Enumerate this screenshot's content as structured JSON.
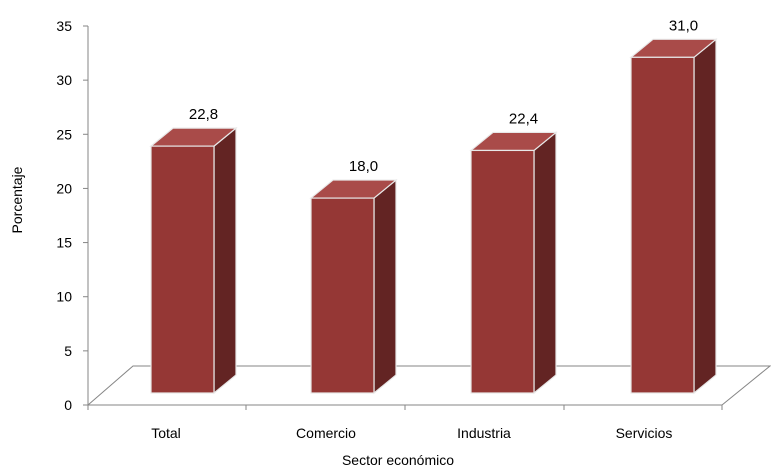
{
  "chart_data": {
    "type": "bar",
    "style": "3d-column",
    "categories": [
      "Total",
      "Comercio",
      "Industria",
      "Servicios"
    ],
    "values": [
      22.8,
      18.0,
      22.4,
      31.0
    ],
    "value_labels": [
      "22,8",
      "18,0",
      "22,4",
      "31,0"
    ],
    "title": "",
    "xlabel": "Sector económico",
    "ylabel": "Porcentaje",
    "ylim": [
      0,
      35
    ],
    "yticks": [
      "0",
      "5",
      "10",
      "15",
      "20",
      "25",
      "30",
      "35"
    ],
    "grid": false,
    "legend": "none",
    "colors": {
      "bar_front": "#953735",
      "bar_top": "#A94B49",
      "bar_side": "#632423",
      "bar_edge": "#E8E8E8",
      "axis": "#868686"
    }
  }
}
